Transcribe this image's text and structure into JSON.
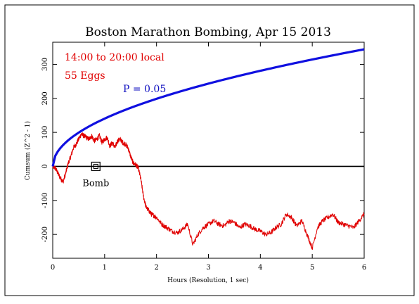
{
  "chart_data": {
    "type": "line",
    "title": "Boston Marathon Bombing, Apr 15 2013",
    "xlabel": "Hours (Resolution, 1 sec)",
    "ylabel": "Cumsum (Z^2 - 1)",
    "xlim": [
      0,
      6
    ],
    "ylim": [
      -270,
      365
    ],
    "xticks": [
      "0",
      "1",
      "2",
      "3",
      "4",
      "5",
      "6"
    ],
    "yticks": [
      "-200",
      "-100",
      "0",
      "100",
      "200",
      "300"
    ],
    "ytick_values": [
      -200,
      -100,
      0,
      100,
      200,
      300
    ],
    "xtick_values": [
      0,
      1,
      2,
      3,
      4,
      5,
      6
    ],
    "grid": false,
    "annotations": {
      "time_window": "14:00 to 20:00 local",
      "eggs": "55 Eggs",
      "probability": "P = 0.05",
      "event": "Bomb"
    },
    "event_x": 0.83,
    "colors": {
      "cumsum": "#e00000",
      "envelope": "#1010e0",
      "zero_line": "#000000",
      "note_red": "#e00000",
      "note_blue": "#1010c0"
    },
    "series": [
      {
        "name": "",
        "color": "#e00000",
        "x": [
          0,
          0.05,
          0.1,
          0.15,
          0.2,
          0.25,
          0.3,
          0.35,
          0.4,
          0.45,
          0.5,
          0.55,
          0.6,
          0.65,
          0.7,
          0.75,
          0.8,
          0.85,
          0.9,
          0.95,
          1.0,
          1.05,
          1.1,
          1.15,
          1.2,
          1.25,
          1.3,
          1.35,
          1.4,
          1.45,
          1.5,
          1.55,
          1.6,
          1.65,
          1.7,
          1.75,
          1.8,
          1.85,
          1.9,
          1.95,
          2.0,
          2.1,
          2.2,
          2.3,
          2.4,
          2.5,
          2.6,
          2.7,
          2.8,
          2.9,
          3.0,
          3.1,
          3.2,
          3.3,
          3.4,
          3.5,
          3.6,
          3.7,
          3.8,
          3.9,
          4.0,
          4.1,
          4.2,
          4.3,
          4.4,
          4.5,
          4.6,
          4.7,
          4.8,
          4.9,
          5.0,
          5.1,
          5.2,
          5.3,
          5.4,
          5.5,
          5.6,
          5.7,
          5.8,
          5.9,
          6.0
        ],
        "y": [
          0,
          -5,
          -20,
          -35,
          -45,
          -20,
          10,
          30,
          55,
          65,
          80,
          95,
          90,
          85,
          80,
          90,
          75,
          80,
          90,
          70,
          80,
          85,
          60,
          70,
          55,
          75,
          80,
          70,
          65,
          55,
          30,
          10,
          5,
          -5,
          -40,
          -90,
          -120,
          -130,
          -140,
          -145,
          -150,
          -170,
          -180,
          -190,
          -195,
          -185,
          -170,
          -230,
          -200,
          -180,
          -170,
          -160,
          -170,
          -175,
          -160,
          -165,
          -180,
          -170,
          -175,
          -185,
          -190,
          -200,
          -195,
          -180,
          -170,
          -140,
          -150,
          -175,
          -160,
          -200,
          -240,
          -180,
          -160,
          -150,
          -140,
          -165,
          -170,
          -175,
          -180,
          -160,
          -140
        ]
      },
      {
        "name": "",
        "color": "#1010e0",
        "x": [
          0,
          0.02,
          0.05,
          0.1,
          0.2,
          0.3,
          0.5,
          0.75,
          1.0,
          1.5,
          2.0,
          2.5,
          3.0,
          3.5,
          4.0,
          4.5,
          5.0,
          5.5,
          6.0
        ],
        "y": [
          0,
          24,
          38,
          53,
          75,
          92,
          119,
          146,
          168,
          206,
          238,
          266,
          291,
          315,
          336,
          357,
          376,
          395,
          345
        ]
      }
    ]
  }
}
